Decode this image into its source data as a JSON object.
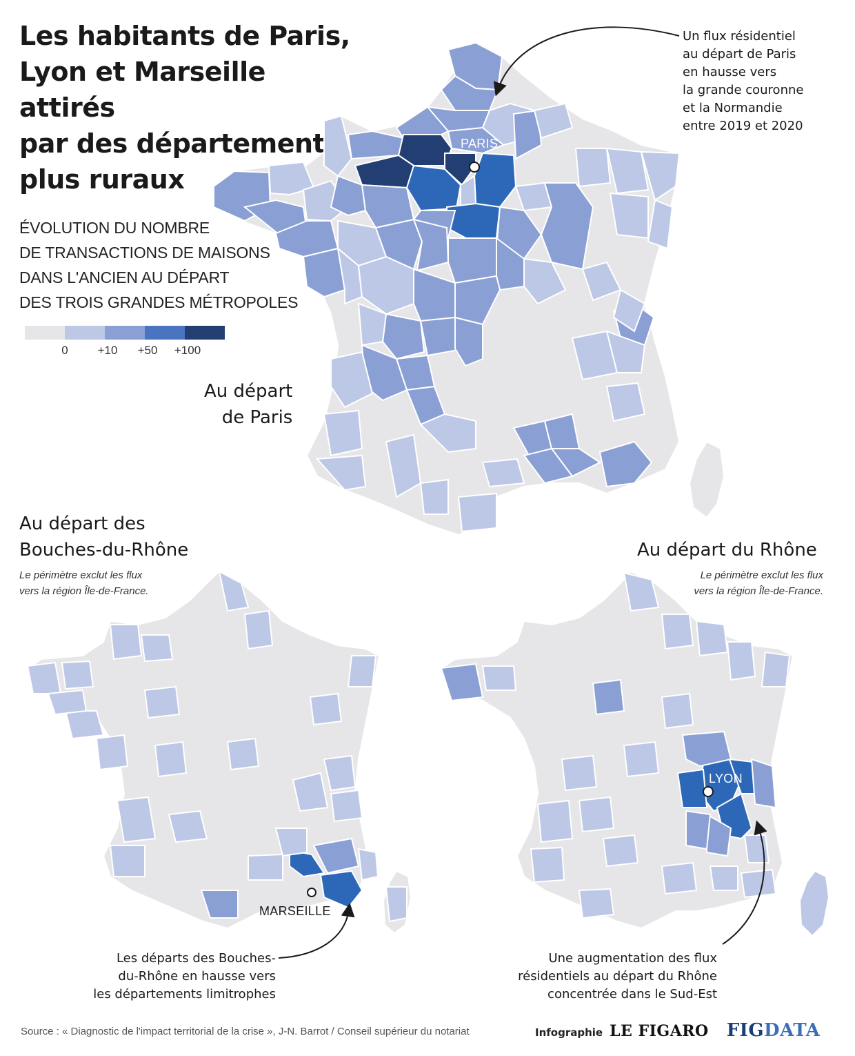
{
  "title": {
    "lines": [
      "Les habitants de Paris,",
      "Lyon et Marseille attirés",
      "par des départements",
      "plus ruraux"
    ]
  },
  "legend": {
    "title_lines": [
      "ÉVOLUTION DU NOMBRE",
      "DE TRANSACTIONS DE MAISONS",
      "DANS L'ANCIEN AU DÉPART",
      "DES TROIS GRANDES MÉTROPOLES"
    ],
    "colors": [
      "#e6e6e8",
      "#bcc8e6",
      "#8a9fd4",
      "#4a73c0",
      "#233e72"
    ],
    "ticks": [
      "0",
      "+10",
      "+50",
      "+100"
    ]
  },
  "colors": {
    "neutral": "#e6e6e8",
    "class1": "#bcc8e6",
    "class2": "#8a9fd4",
    "class3": "#4a73c0",
    "class3b": "#2d68b8",
    "class4": "#233e72",
    "border": "#ffffff"
  },
  "maps": {
    "paris": {
      "label_lines": [
        "Au départ",
        "de Paris"
      ],
      "city": "PARIS",
      "annotation": [
        "Un flux résidentiel",
        "au départ de Paris",
        "en hausse vers",
        "la grande couronne",
        "et la Normandie",
        "entre 2019 et 2020"
      ]
    },
    "marseille": {
      "label_lines": [
        "Au départ des",
        "Bouches-du-Rhône"
      ],
      "note_lines": [
        "Le périmètre exclut les flux",
        "vers la région Île-de-France."
      ],
      "city": "MARSEILLE",
      "annotation": [
        "Les départs des Bouches-",
        "du-Rhône en hausse vers",
        "les départements limitrophes"
      ]
    },
    "lyon": {
      "label_lines": [
        "Au départ du Rhône"
      ],
      "note_lines": [
        "Le périmètre exclut les flux",
        "vers la région Île-de-France."
      ],
      "city": "LYON",
      "annotation": [
        "Une augmentation des flux",
        "résidentiels au départ du Rhône",
        "concentrée dans le Sud-Est"
      ]
    }
  },
  "footer": {
    "source": "Source : « Diagnostic de l'impact territorial de la crise », J-N. Barrot / Conseil supérieur du notariat",
    "credit_label": "Infographie",
    "brand": "LE FIGARO",
    "brand2_a": "FIG",
    "brand2_b": "DATA"
  }
}
